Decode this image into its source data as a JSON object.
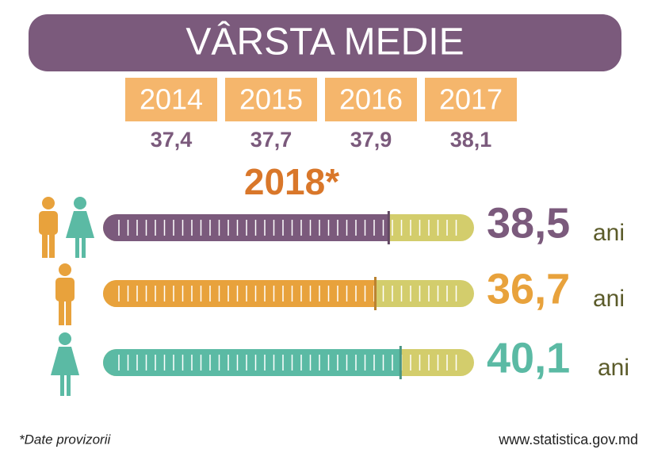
{
  "title": "VÂRSTA MEDIE",
  "years": {
    "categories": [
      "2014",
      "2015",
      "2016",
      "2017"
    ],
    "values": [
      37.4,
      37.7,
      37.9,
      38.1
    ],
    "value_labels": [
      "37,4",
      "37,7",
      "37,9",
      "38,1"
    ]
  },
  "chart_data": {
    "type": "bar",
    "title": "2018*",
    "orientation": "horizontal",
    "categories": [
      null,
      null,
      null
    ],
    "values": [
      38.5,
      36.7,
      40.1
    ],
    "value_labels": [
      "38,5",
      "36,7",
      "40,1"
    ],
    "colors": [
      "#7b5a7c",
      "#e8a23c",
      "#5bbaa4"
    ],
    "track_color": "#d3cd6c",
    "unit": "ani",
    "xlim": [
      0,
      50
    ]
  },
  "footnote": "*Date provizorii",
  "source": "www.statistica.gov.md"
}
